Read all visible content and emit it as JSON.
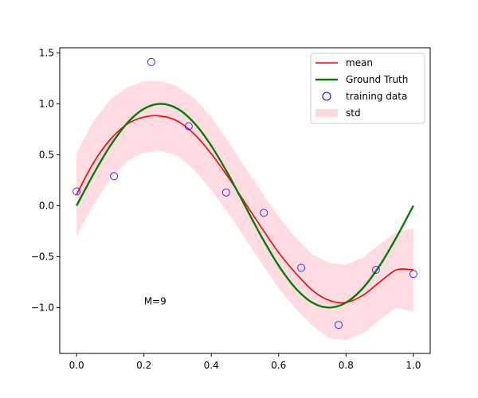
{
  "chart_data": {
    "type": "line",
    "title": "",
    "xlabel": "",
    "ylabel": "",
    "xlim": [
      -0.05,
      1.05
    ],
    "ylim": [
      -1.45,
      1.55
    ],
    "xticks": [
      0.0,
      0.2,
      0.4,
      0.6,
      0.8,
      1.0
    ],
    "xtick_labels": [
      "0.0",
      "0.2",
      "0.4",
      "0.6",
      "0.8",
      "1.0"
    ],
    "yticks": [
      -1.0,
      -0.5,
      0.0,
      0.5,
      1.0,
      1.5
    ],
    "ytick_labels": [
      "−1.0",
      "−0.5",
      "0.0",
      "0.5",
      "1.0",
      "1.5"
    ],
    "grid": false,
    "legend_position": "top-right",
    "annotation": {
      "text": "M=9",
      "x": 0.2,
      "y": -0.97
    },
    "series": [
      {
        "name": "mean",
        "kind": "line",
        "color": "#ff0000",
        "x": [
          0.0,
          0.05,
          0.1,
          0.15,
          0.2,
          0.25,
          0.3,
          0.35,
          0.4,
          0.45,
          0.5,
          0.55,
          0.6,
          0.65,
          0.7,
          0.75,
          0.8,
          0.85,
          0.9,
          0.95,
          1.0
        ],
        "y": [
          0.11,
          0.42,
          0.65,
          0.8,
          0.87,
          0.88,
          0.83,
          0.7,
          0.51,
          0.28,
          0.03,
          -0.22,
          -0.46,
          -0.66,
          -0.83,
          -0.93,
          -0.95,
          -0.88,
          -0.75,
          -0.63,
          -0.63
        ]
      },
      {
        "name": "Ground Truth",
        "kind": "line",
        "color": "#008000",
        "x": [
          0.0,
          0.05,
          0.1,
          0.15,
          0.2,
          0.25,
          0.3,
          0.35,
          0.4,
          0.45,
          0.5,
          0.55,
          0.6,
          0.65,
          0.7,
          0.75,
          0.8,
          0.85,
          0.9,
          0.95,
          1.0
        ],
        "y": [
          0.0,
          0.309,
          0.588,
          0.809,
          0.951,
          1.0,
          0.951,
          0.809,
          0.588,
          0.309,
          0.0,
          -0.309,
          -0.588,
          -0.809,
          -0.951,
          -1.0,
          -0.951,
          -0.809,
          -0.588,
          -0.309,
          0.0
        ]
      },
      {
        "name": "training data",
        "kind": "scatter",
        "color": "#0000ff",
        "x": [
          0.0,
          0.111,
          0.222,
          0.333,
          0.444,
          0.556,
          0.667,
          0.778,
          0.889,
          1.0
        ],
        "y": [
          0.14,
          0.29,
          1.41,
          0.78,
          0.13,
          -0.07,
          -0.61,
          -1.17,
          -0.63,
          -0.67
        ]
      },
      {
        "name": "std",
        "kind": "band",
        "color": "#ffc0cb",
        "x": [
          0.0,
          0.05,
          0.1,
          0.15,
          0.2,
          0.25,
          0.3,
          0.35,
          0.4,
          0.45,
          0.5,
          0.55,
          0.6,
          0.65,
          0.7,
          0.75,
          0.8,
          0.85,
          0.9,
          0.95,
          1.0
        ],
        "upper": [
          0.52,
          0.83,
          1.04,
          1.16,
          1.22,
          1.22,
          1.17,
          1.05,
          0.87,
          0.63,
          0.38,
          0.13,
          -0.11,
          -0.31,
          -0.48,
          -0.56,
          -0.58,
          -0.51,
          -0.38,
          -0.26,
          -0.22
        ],
        "lower": [
          -0.3,
          0.01,
          0.26,
          0.44,
          0.52,
          0.54,
          0.49,
          0.35,
          0.15,
          -0.07,
          -0.32,
          -0.57,
          -0.81,
          -1.01,
          -1.18,
          -1.3,
          -1.32,
          -1.25,
          -1.12,
          -1.0,
          -1.04
        ]
      }
    ]
  }
}
